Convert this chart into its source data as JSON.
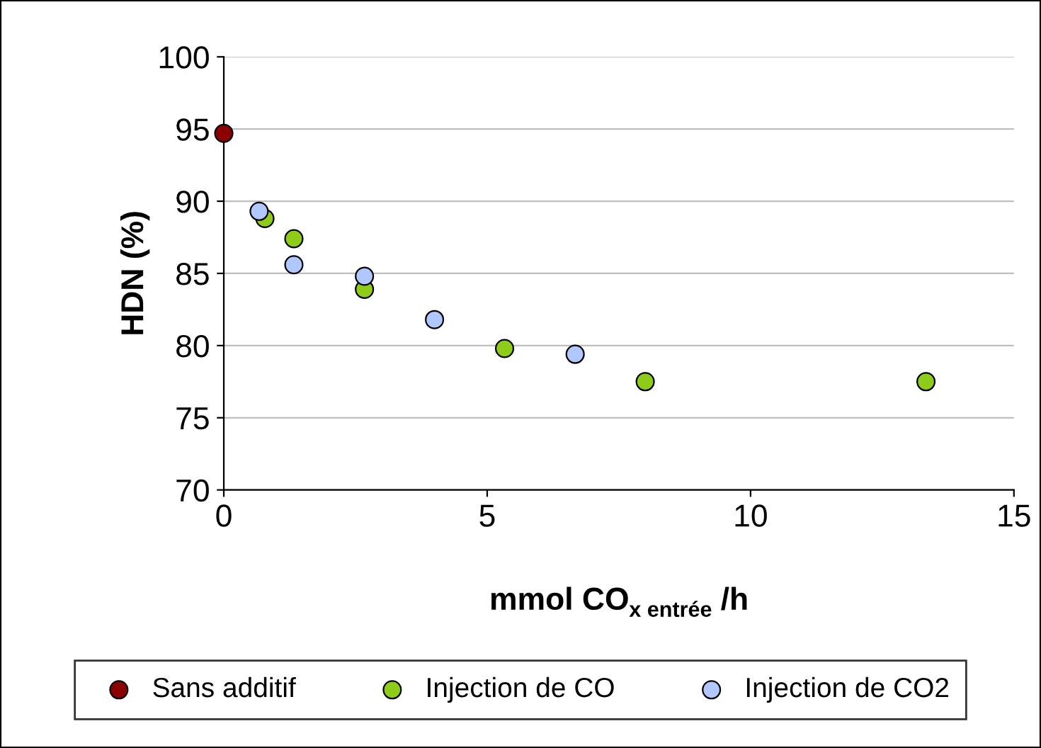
{
  "chart_data": {
    "type": "scatter",
    "xlabel": "mmol CO$_{x entrée}$ /h",
    "ylabel": "HDN (%)",
    "xlim": [
      0,
      15
    ],
    "xticks": [
      0,
      5,
      10,
      15
    ],
    "ylim": [
      70,
      100
    ],
    "yticks": [
      70,
      75,
      80,
      85,
      90,
      95,
      100
    ],
    "grid": "y",
    "legend": "bottom",
    "marker": "circle",
    "series": [
      {
        "name": "Sans additif",
        "color": "#8b0000",
        "x": [
          0
        ],
        "values": [
          94.7
        ]
      },
      {
        "name": "Injection de CO",
        "color": "#8fcc1a",
        "x": [
          0.78,
          1.33,
          2.67,
          5.33,
          8,
          13.33
        ],
        "values": [
          88.8,
          87.4,
          83.9,
          79.8,
          77.5,
          77.5
        ]
      },
      {
        "name": "Injection de CO2",
        "color": "#b0c8ff",
        "x": [
          0.67,
          1.33,
          2.67,
          4,
          6.67
        ],
        "values": [
          89.3,
          85.6,
          84.8,
          81.8,
          79.4
        ]
      }
    ]
  }
}
